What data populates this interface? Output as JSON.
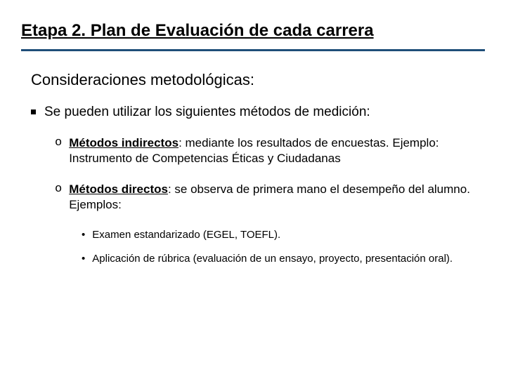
{
  "colors": {
    "background": "#ffffff",
    "text": "#000000",
    "rule": "#1f4e79"
  },
  "typography": {
    "family": "Arial",
    "title_size_pt": 24,
    "subtitle_size_pt": 22,
    "level1_size_pt": 19,
    "level2_size_pt": 17,
    "level3_size_pt": 15
  },
  "title": "Etapa 2. Plan de Evaluación de cada carrera",
  "subtitle": "Consideraciones metodológicas:",
  "level1_text": "Se pueden utilizar los siguientes métodos de medición:",
  "level2": [
    {
      "label": "Métodos indirectos",
      "rest": ": mediante los resultados de encuestas. Ejemplo: Instrumento de Competencias Éticas y Ciudadanas"
    },
    {
      "label": "Métodos directos",
      "rest": ": se observa de primera mano el desempeño del alumno. Ejemplos:"
    }
  ],
  "level3": [
    "Examen estandarizado (EGEL, TOEFL).",
    "Aplicación de rúbrica (evaluación de un ensayo, proyecto, presentación oral)."
  ]
}
